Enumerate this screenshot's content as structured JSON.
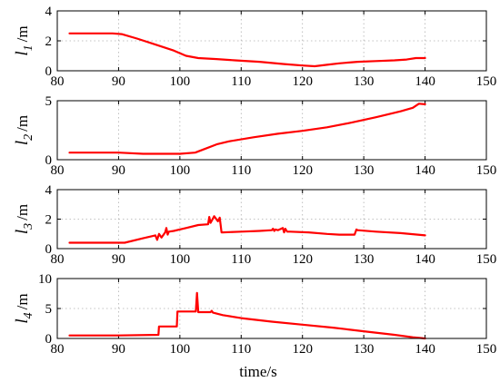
{
  "chart_data": [
    {
      "type": "line",
      "ylabel": "l",
      "ylabel_sub": "1",
      "ylabel_unit": "/m",
      "xlim": [
        80,
        150
      ],
      "ylim": [
        0,
        4
      ],
      "xticks": [
        80,
        90,
        100,
        110,
        120,
        130,
        140,
        150
      ],
      "yticks": [
        0,
        2,
        4
      ],
      "grid": true,
      "series": [
        {
          "color": "#ff0000",
          "x": [
            82,
            86,
            89,
            90.5,
            93,
            96,
            99,
            101,
            103,
            106,
            109,
            113,
            117,
            120,
            122,
            124,
            126,
            129,
            132,
            135,
            137,
            138.5,
            140
          ],
          "y": [
            2.5,
            2.5,
            2.5,
            2.45,
            2.15,
            1.75,
            1.35,
            1.0,
            0.85,
            0.78,
            0.7,
            0.6,
            0.45,
            0.35,
            0.3,
            0.4,
            0.5,
            0.6,
            0.65,
            0.7,
            0.75,
            0.85,
            0.85
          ]
        }
      ]
    },
    {
      "type": "line",
      "ylabel": "l",
      "ylabel_sub": "2",
      "ylabel_unit": "/m",
      "xlim": [
        80,
        150
      ],
      "ylim": [
        0,
        5
      ],
      "xticks": [
        80,
        90,
        100,
        110,
        120,
        130,
        140,
        150
      ],
      "yticks": [
        0,
        5
      ],
      "grid": true,
      "series": [
        {
          "color": "#ff0000",
          "x": [
            82,
            90,
            94,
            97,
            100,
            102.5,
            104,
            106,
            108,
            112,
            116,
            120,
            124,
            128,
            132,
            136,
            138,
            139,
            140
          ],
          "y": [
            0.6,
            0.6,
            0.5,
            0.5,
            0.5,
            0.6,
            0.9,
            1.3,
            1.55,
            1.9,
            2.2,
            2.45,
            2.75,
            3.15,
            3.6,
            4.1,
            4.4,
            4.75,
            4.7
          ]
        }
      ]
    },
    {
      "type": "line",
      "ylabel": "l",
      "ylabel_sub": "3",
      "ylabel_unit": "/m",
      "xlim": [
        80,
        150
      ],
      "ylim": [
        0,
        4
      ],
      "xticks": [
        80,
        90,
        100,
        110,
        120,
        130,
        140,
        150
      ],
      "yticks": [
        0,
        2,
        4
      ],
      "grid": true,
      "series": [
        {
          "color": "#ff0000",
          "x": [
            82,
            90,
            91,
            94,
            96,
            96.3,
            96.6,
            97,
            97.6,
            97.8,
            98,
            98.2,
            99,
            101,
            103,
            104.6,
            104.8,
            105,
            105.6,
            106.2,
            106.5,
            106.8,
            107,
            110,
            113,
            115,
            115.2,
            115.4,
            115.6,
            116,
            116.8,
            117,
            117.2,
            117.5,
            118,
            121,
            124,
            126,
            128.5,
            128.8,
            129,
            132,
            136,
            140
          ],
          "y": [
            0.4,
            0.4,
            0.4,
            0.7,
            0.9,
            0.6,
            1.0,
            0.75,
            1.1,
            1.4,
            0.95,
            1.15,
            1.2,
            1.4,
            1.6,
            1.65,
            2.15,
            1.75,
            2.2,
            1.85,
            2.1,
            1.1,
            1.1,
            1.15,
            1.2,
            1.25,
            1.35,
            1.2,
            1.3,
            1.25,
            1.4,
            1.1,
            1.35,
            1.15,
            1.15,
            1.1,
            1.0,
            0.95,
            0.95,
            1.3,
            1.25,
            1.15,
            1.05,
            0.9
          ]
        }
      ]
    },
    {
      "type": "line",
      "ylabel": "l",
      "ylabel_sub": "4",
      "ylabel_unit": "/m",
      "xlim": [
        80,
        150
      ],
      "ylim": [
        0,
        10
      ],
      "xticks": [
        80,
        90,
        100,
        110,
        120,
        130,
        140,
        150
      ],
      "yticks": [
        0,
        5,
        10
      ],
      "grid": true,
      "xlabel": "time/s",
      "series": [
        {
          "color": "#ff0000",
          "x": [
            82,
            90,
            96.5,
            96.6,
            99.5,
            99.6,
            102.6,
            102.8,
            103,
            103.2,
            105,
            105.2,
            105.4,
            107,
            110,
            115,
            120,
            125,
            130,
            135,
            138,
            140
          ],
          "y": [
            0.5,
            0.5,
            0.6,
            2.0,
            2.0,
            4.5,
            4.5,
            7.6,
            4.4,
            4.4,
            4.4,
            4.6,
            4.3,
            3.9,
            3.4,
            2.8,
            2.3,
            1.8,
            1.2,
            0.6,
            0.2,
            0.0
          ]
        }
      ]
    }
  ]
}
